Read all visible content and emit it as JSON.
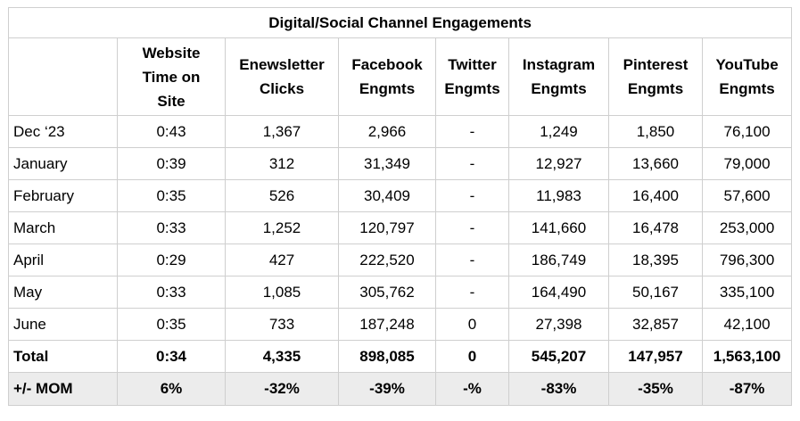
{
  "title": "Digital/Social Channel Engagements",
  "headers": [
    "",
    "Website Time on Site",
    "Enewsletter Clicks",
    "Facebook Engmts",
    "Twitter Engmts",
    "Instagram Engmts",
    "Pinterest Engmts",
    "YouTube Engmts"
  ],
  "header_lines": [
    [],
    [
      "Website",
      "Time on",
      "Site"
    ],
    [
      "Enewsletter",
      "Clicks"
    ],
    [
      "Facebook",
      "Engmts"
    ],
    [
      "Twitter",
      "Engmts"
    ],
    [
      "Instagram",
      "Engmts"
    ],
    [
      "Pinterest",
      "Engmts"
    ],
    [
      "YouTube",
      "Engmts"
    ]
  ],
  "rows": [
    [
      "Dec ‘23",
      "0:43",
      "1,367",
      "2,966",
      "-",
      "1,249",
      "1,850",
      "76,100"
    ],
    [
      "January",
      "0:39",
      "312",
      "31,349",
      "-",
      "12,927",
      "13,660",
      "79,000"
    ],
    [
      "February",
      "0:35",
      "526",
      "30,409",
      "-",
      "11,983",
      "16,400",
      "57,600"
    ],
    [
      "March",
      "0:33",
      "1,252",
      "120,797",
      "-",
      "141,660",
      "16,478",
      "253,000"
    ],
    [
      "April",
      "0:29",
      "427",
      "222,520",
      "-",
      "186,749",
      "18,395",
      "796,300"
    ],
    [
      "May",
      "0:33",
      "1,085",
      "305,762",
      "-",
      "164,490",
      "50,167",
      "335,100"
    ],
    [
      "June",
      "0:35",
      "733",
      "187,248",
      "0",
      "27,398",
      "32,857",
      "42,100"
    ]
  ],
  "total": [
    "Total",
    "0:34",
    "4,335",
    "898,085",
    "0",
    "545,207",
    "147,957",
    "1,563,100"
  ],
  "mom": [
    "+/- MOM",
    "6%",
    "-32%",
    "-39%",
    "-%",
    "-83%",
    "-35%",
    "-87%"
  ],
  "colors": {
    "grid": "#cfcfcf",
    "mom_background": "#ececec"
  }
}
